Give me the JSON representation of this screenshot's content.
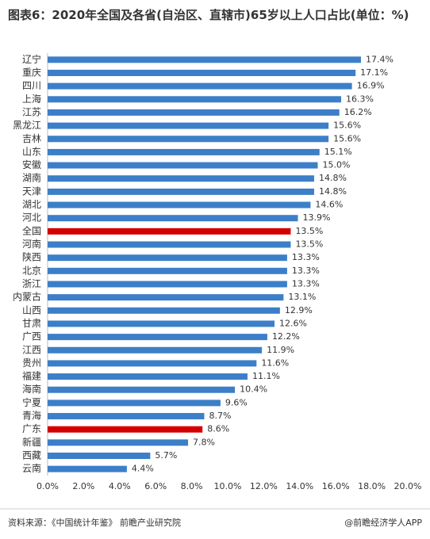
{
  "chart_data": {
    "type": "hbar",
    "title": "图表6：2020年全国及各省(自治区、直辖市)65岁以上人口占比(单位：%)",
    "categories": [
      "辽宁",
      "重庆",
      "四川",
      "上海",
      "江苏",
      "黑龙江",
      "吉林",
      "山东",
      "安徽",
      "湖南",
      "天津",
      "湖北",
      "河北",
      "全国",
      "河南",
      "陕西",
      "北京",
      "浙江",
      "内蒙古",
      "山西",
      "甘肃",
      "广西",
      "江西",
      "贵州",
      "福建",
      "海南",
      "宁夏",
      "青海",
      "广东",
      "新疆",
      "西藏",
      "云南"
    ],
    "values": [
      17.4,
      17.1,
      16.9,
      16.3,
      16.2,
      15.6,
      15.6,
      15.1,
      15.0,
      14.8,
      14.8,
      14.6,
      13.9,
      13.5,
      13.5,
      13.3,
      13.3,
      13.3,
      13.1,
      12.9,
      12.6,
      12.2,
      11.9,
      11.6,
      11.1,
      10.4,
      9.6,
      8.7,
      8.6,
      7.8,
      5.7,
      4.4
    ],
    "value_labels": [
      "17.4%",
      "17.1%",
      "16.9%",
      "16.3%",
      "16.2%",
      "15.6%",
      "15.6%",
      "15.1%",
      "15.0%",
      "14.8%",
      "14.8%",
      "14.6%",
      "13.9%",
      "13.5%",
      "13.5%",
      "13.3%",
      "13.3%",
      "13.3%",
      "13.1%",
      "12.9%",
      "12.6%",
      "12.2%",
      "11.9%",
      "11.6%",
      "11.1%",
      "10.4%",
      "9.6%",
      "8.7%",
      "8.6%",
      "7.8%",
      "5.7%",
      "4.4%"
    ],
    "colors": [
      "#3c7fc8",
      "#3c7fc8",
      "#3c7fc8",
      "#3c7fc8",
      "#3c7fc8",
      "#3c7fc8",
      "#3c7fc8",
      "#3c7fc8",
      "#3c7fc8",
      "#3c7fc8",
      "#3c7fc8",
      "#3c7fc8",
      "#3c7fc8",
      "#d40000",
      "#3c7fc8",
      "#3c7fc8",
      "#3c7fc8",
      "#3c7fc8",
      "#3c7fc8",
      "#3c7fc8",
      "#3c7fc8",
      "#3c7fc8",
      "#3c7fc8",
      "#3c7fc8",
      "#3c7fc8",
      "#3c7fc8",
      "#3c7fc8",
      "#3c7fc8",
      "#d40000",
      "#3c7fc8",
      "#3c7fc8",
      "#3c7fc8"
    ],
    "xlim": [
      0,
      20
    ],
    "xticks": [
      {
        "value": 0,
        "label": "0.0%"
      },
      {
        "value": 2,
        "label": "2.0%"
      },
      {
        "value": 4,
        "label": "4.0%"
      },
      {
        "value": 6,
        "label": "6.0%"
      },
      {
        "value": 8,
        "label": "8.0%"
      },
      {
        "value": 10,
        "label": "10.0%"
      },
      {
        "value": 12,
        "label": "12.0%"
      },
      {
        "value": 14,
        "label": "14.0%"
      },
      {
        "value": 16,
        "label": "16.0%"
      },
      {
        "value": 18,
        "label": "18.0%"
      },
      {
        "value": 20,
        "label": "20.0%"
      }
    ],
    "source": "资料来源：《中国统计年鉴》 前瞻产业研究院",
    "credit": "@前瞻经济学人APP"
  }
}
